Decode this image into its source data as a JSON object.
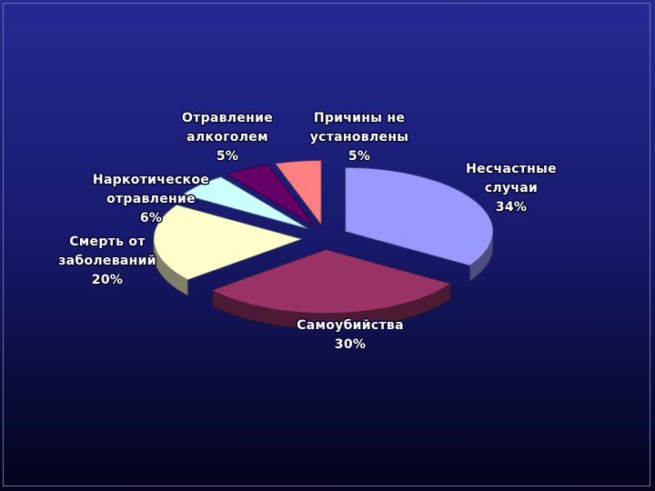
{
  "chart_data": {
    "type": "pie",
    "style": "3d-exploded",
    "title": "",
    "legend": "none",
    "slices": [
      {
        "label_lines": [
          "Несчастные",
          "случаи",
          "34%"
        ],
        "value": 34,
        "color": "#9999ff"
      },
      {
        "label_lines": [
          "Самоубийства",
          "30%"
        ],
        "value": 30,
        "color": "#993366"
      },
      {
        "label_lines": [
          "Смерть от",
          "заболеваний",
          "20%"
        ],
        "value": 20,
        "color": "#ffffcc"
      },
      {
        "label_lines": [
          "Наркотическое",
          "отравление",
          "6%"
        ],
        "value": 6,
        "color": "#ccffff"
      },
      {
        "label_lines": [
          "Отравление",
          "алкоголем",
          "5%"
        ],
        "value": 5,
        "color": "#660066"
      },
      {
        "label_lines": [
          "Причины не",
          "установлены",
          "5%"
        ],
        "value": 5,
        "color": "#ff8080"
      }
    ]
  }
}
